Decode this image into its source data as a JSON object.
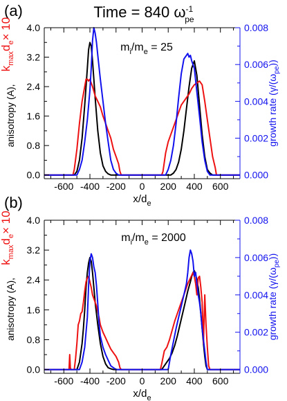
{
  "figure": {
    "title_prefix": "Time = 840 ω",
    "title_sup": "-1",
    "title_sub": "pe"
  },
  "colors": {
    "anisotropy": "#000000",
    "kmax": "#ee1111",
    "growth": "#1111ee"
  },
  "chart_data": [
    {
      "type": "line",
      "panel_label": "(a)",
      "annotation": "mi/me = 25",
      "annotation_parts": {
        "m1": "m",
        "s1": "i",
        "slash": "/m",
        "s2": "e",
        "rest": " = 25"
      },
      "xlabel_main": "x/d",
      "xlabel_sub": "e",
      "ylabel_left": "anisotropy (A),",
      "ylabel_left_red_main": "k",
      "ylabel_left_red_sub1": "max",
      "ylabel_left_red_mid": "d",
      "ylabel_left_red_sub2": "e",
      "ylabel_left_red_tail": "× 10",
      "ylabel_right": "growth rate (γ/(ω",
      "ylabel_right_sub": "pe",
      "ylabel_right_tail": "))",
      "xlim": [
        -750,
        750
      ],
      "ylim_left": [
        -0.1,
        4.0
      ],
      "ylim_right": [
        -0.0002,
        0.008
      ],
      "xticks": [
        -600,
        -400,
        -200,
        0,
        200,
        400,
        600
      ],
      "xtick_labels": [
        "-600",
        "-400",
        "-200",
        "0",
        "200",
        "400",
        "600"
      ],
      "yticks_left": [
        0.0,
        0.8,
        1.6,
        2.4,
        3.2,
        4.0
      ],
      "ytick_left_labels": [
        "0.0",
        "0.8",
        "1.6",
        "2.4",
        "3.2",
        "4.0"
      ],
      "yticks_right": [
        0.0,
        0.002,
        0.004,
        0.006,
        0.008
      ],
      "ytick_right_labels": [
        "0.000",
        "0.002",
        "0.004",
        "0.006",
        "0.008"
      ],
      "series": [
        {
          "name": "anisotropy",
          "axis": "left",
          "color": "#000000",
          "x": [
            -750,
            -520,
            -500,
            -480,
            -460,
            -440,
            -420,
            -410,
            -400,
            -390,
            -380,
            -360,
            -340,
            -320,
            -300,
            -280,
            -260,
            -240,
            -220,
            -200,
            200,
            220,
            240,
            260,
            280,
            300,
            320,
            340,
            360,
            380,
            400,
            420,
            440,
            460,
            480,
            500,
            520,
            540,
            750
          ],
          "y": [
            0,
            0,
            0.1,
            0.4,
            1.0,
            1.9,
            2.9,
            3.4,
            3.6,
            3.5,
            3.1,
            2.1,
            1.2,
            0.6,
            0.25,
            0.1,
            0.03,
            0,
            0,
            0,
            0,
            0,
            0.05,
            0.15,
            0.35,
            0.7,
            1.2,
            1.8,
            2.4,
            2.9,
            3.1,
            2.7,
            1.9,
            1.1,
            0.5,
            0.15,
            0.05,
            0,
            0
          ]
        },
        {
          "name": "kmax",
          "axis": "left",
          "color": "#ee1111",
          "x": [
            -750,
            -530,
            -520,
            -500,
            -480,
            -460,
            -440,
            -430,
            -420,
            -410,
            -400,
            -390,
            -380,
            -360,
            -340,
            -320,
            -300,
            -280,
            -260,
            -240,
            -220,
            -200,
            -180,
            -170,
            -160,
            -150,
            150,
            160,
            180,
            200,
            220,
            240,
            260,
            280,
            300,
            320,
            340,
            360,
            380,
            400,
            420,
            440,
            460,
            480,
            500,
            520,
            540,
            560,
            570,
            750
          ],
          "y": [
            0,
            0,
            0.15,
            0.7,
            1.4,
            2.0,
            2.4,
            2.6,
            2.6,
            2.55,
            2.6,
            2.5,
            2.4,
            2.15,
            2.0,
            1.85,
            1.6,
            1.4,
            1.2,
            1.0,
            0.7,
            0.5,
            0.3,
            0.1,
            0,
            0,
            0,
            0.1,
            0.6,
            0.9,
            1.1,
            1.3,
            1.5,
            1.7,
            1.9,
            2.0,
            2.1,
            2.2,
            2.35,
            2.45,
            2.5,
            2.55,
            2.45,
            2.0,
            1.5,
            1.0,
            0.5,
            0.2,
            0,
            0
          ]
        },
        {
          "name": "growth",
          "axis": "right",
          "color": "#1111ee",
          "x": [
            -750,
            -500,
            -480,
            -460,
            -440,
            -420,
            -400,
            -390,
            -380,
            -370,
            -360,
            -350,
            -340,
            -320,
            -300,
            -280,
            -260,
            -240,
            -220,
            -200,
            -180,
            180,
            200,
            220,
            240,
            260,
            280,
            300,
            320,
            340,
            350,
            360,
            370,
            380,
            390,
            400,
            420,
            440,
            460,
            480,
            500,
            520,
            750
          ],
          "y": [
            0,
            0,
            0.0003,
            0.0008,
            0.0018,
            0.003,
            0.0046,
            0.0058,
            0.0073,
            0.008,
            0.0077,
            0.0072,
            0.0065,
            0.0052,
            0.004,
            0.0028,
            0.0018,
            0.0008,
            0.0003,
            0.0001,
            0,
            0,
            0.0003,
            0.0008,
            0.0016,
            0.0028,
            0.0042,
            0.0055,
            0.0063,
            0.0065,
            0.0066,
            0.0064,
            0.0065,
            0.0062,
            0.006,
            0.0058,
            0.0045,
            0.0032,
            0.0018,
            0.0008,
            0.0002,
            0,
            0
          ]
        }
      ]
    },
    {
      "type": "line",
      "panel_label": "(b)",
      "annotation": "mi/me = 2000",
      "annotation_parts": {
        "m1": "m",
        "s1": "i",
        "slash": "/m",
        "s2": "e",
        "rest": " = 2000"
      },
      "xlabel_main": "x/d",
      "xlabel_sub": "e",
      "ylabel_left": "anisotropy (A),",
      "ylabel_left_red_main": "k",
      "ylabel_left_red_sub1": "max",
      "ylabel_left_red_mid": "d",
      "ylabel_left_red_sub2": "e",
      "ylabel_left_red_tail": "× 10",
      "ylabel_right": "growth rate (γ/(ω",
      "ylabel_right_sub": "pe",
      "ylabel_right_tail": "))",
      "xlim": [
        -750,
        750
      ],
      "ylim_left": [
        -0.1,
        4.0
      ],
      "ylim_right": [
        -0.0002,
        0.008
      ],
      "xticks": [
        -600,
        -400,
        -200,
        0,
        200,
        400,
        600
      ],
      "xtick_labels": [
        "-600",
        "-400",
        "-200",
        "0",
        "200",
        "400",
        "600"
      ],
      "yticks_left": [
        0.0,
        0.8,
        1.6,
        2.4,
        3.2,
        4.0
      ],
      "ytick_left_labels": [
        "0.0",
        "0.8",
        "1.6",
        "2.4",
        "3.2",
        "4.0"
      ],
      "yticks_right": [
        0.0,
        0.002,
        0.004,
        0.006,
        0.008
      ],
      "ytick_right_labels": [
        "0.000",
        "0.002",
        "0.004",
        "0.006",
        "0.008"
      ],
      "series": [
        {
          "name": "anisotropy",
          "axis": "left",
          "color": "#000000",
          "x": [
            -750,
            -500,
            -480,
            -460,
            -450,
            -440,
            -430,
            -420,
            -410,
            -400,
            -390,
            -380,
            -370,
            -360,
            -340,
            -320,
            -300,
            -280,
            -260,
            -240,
            -220,
            150,
            170,
            190,
            210,
            230,
            250,
            270,
            290,
            310,
            330,
            350,
            370,
            380,
            390,
            400,
            410,
            420,
            430,
            440,
            450,
            460,
            470,
            480,
            490,
            500,
            750
          ],
          "y": [
            0,
            0,
            0.2,
            0.7,
            1.1,
            1.6,
            2.2,
            2.6,
            2.85,
            3.0,
            2.9,
            2.6,
            2.2,
            1.8,
            1.2,
            0.7,
            0.35,
            0.15,
            0.05,
            0.02,
            0,
            0,
            0.1,
            0.2,
            0.3,
            0.45,
            0.65,
            0.9,
            1.2,
            1.5,
            1.8,
            2.1,
            2.35,
            2.5,
            2.6,
            2.65,
            2.55,
            2.4,
            2.2,
            1.9,
            1.5,
            1.1,
            0.7,
            0.35,
            0.1,
            0,
            0
          ]
        },
        {
          "name": "kmax",
          "axis": "left",
          "color": "#ee1111",
          "x": [
            -750,
            -560,
            -555,
            -550,
            -545,
            -520,
            -510,
            -500,
            -490,
            -480,
            -470,
            -460,
            -450,
            -440,
            -430,
            -420,
            -410,
            -400,
            -390,
            -380,
            -370,
            -360,
            -350,
            -340,
            -330,
            -320,
            -300,
            -280,
            -260,
            -240,
            -220,
            -200,
            -180,
            -170,
            -160,
            140,
            150,
            170,
            190,
            210,
            230,
            250,
            270,
            290,
            310,
            330,
            350,
            370,
            390,
            400,
            410,
            420,
            430,
            440,
            450,
            460,
            470,
            480,
            490,
            500,
            510,
            520,
            750
          ],
          "y": [
            0,
            0,
            0.4,
            0.05,
            0,
            0,
            0.3,
            0.7,
            1.2,
            1.3,
            1.5,
            1.55,
            1.8,
            2.1,
            2.35,
            2.45,
            2.5,
            2.35,
            2.2,
            2.0,
            1.9,
            1.8,
            1.7,
            1.55,
            1.4,
            1.2,
            1.0,
            0.85,
            0.7,
            0.55,
            0.45,
            0.35,
            0.2,
            0.05,
            0,
            0,
            0.15,
            0.5,
            0.6,
            0.8,
            1.05,
            1.3,
            1.5,
            1.7,
            1.9,
            2.1,
            2.3,
            2.45,
            2.6,
            2.5,
            2.3,
            2.0,
            2.45,
            2.5,
            2.2,
            1.8,
            0.7,
            2.0,
            1.2,
            0.6,
            0.1,
            0,
            0
          ]
        },
        {
          "name": "growth",
          "axis": "right",
          "color": "#1111ee",
          "x": [
            -750,
            -480,
            -460,
            -440,
            -420,
            -410,
            -400,
            -390,
            -380,
            -370,
            -360,
            -350,
            -340,
            -330,
            -320,
            -300,
            -280,
            -260,
            -240,
            -220,
            -200,
            200,
            220,
            240,
            260,
            280,
            300,
            320,
            340,
            350,
            360,
            370,
            380,
            390,
            400,
            410,
            420,
            430,
            440,
            450,
            460,
            470,
            480,
            490,
            500,
            750
          ],
          "y": [
            0,
            0,
            0.0004,
            0.0012,
            0.0028,
            0.0045,
            0.0058,
            0.0062,
            0.006,
            0.0055,
            0.0052,
            0.0045,
            0.0035,
            0.0025,
            0.0018,
            0.0012,
            0.0008,
            0.0005,
            0.0002,
            0.0001,
            0,
            0,
            0.0008,
            0.0015,
            0.0022,
            0.0028,
            0.0034,
            0.004,
            0.0046,
            0.0052,
            0.006,
            0.0064,
            0.0062,
            0.0058,
            0.005,
            0.0052,
            0.0046,
            0.004,
            0.0036,
            0.003,
            0.0022,
            0.0016,
            0.001,
            0.0004,
            0,
            0
          ]
        }
      ]
    }
  ]
}
